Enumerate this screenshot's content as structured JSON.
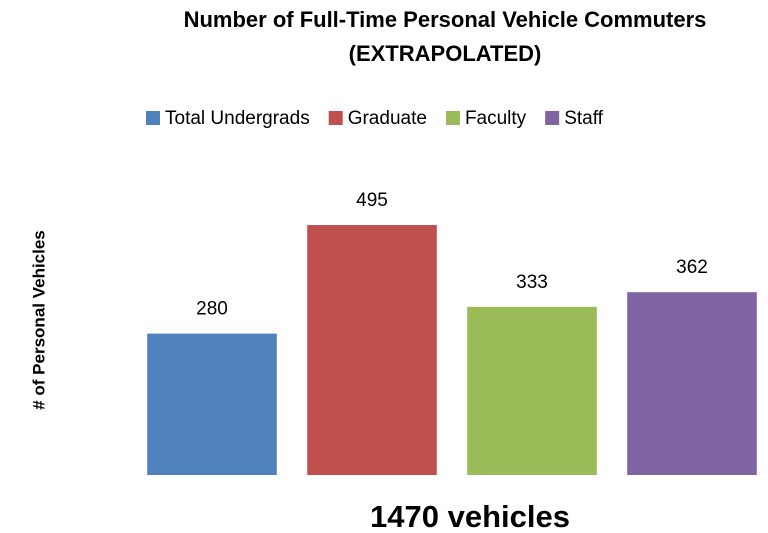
{
  "chart_data": {
    "type": "bar",
    "title": "Number of Full-Time Personal Vehicle Commuters",
    "subtitle": "(EXTRAPOLATED)",
    "y_label": "# of Personal Vehicles",
    "annotation": "1470 vehicles",
    "categories": [
      null
    ],
    "series": [
      {
        "name": "Total Undergrads",
        "color": "#4f81bd",
        "values": [
          280
        ]
      },
      {
        "name": "Graduate",
        "color": "#c0504d",
        "values": [
          495
        ]
      },
      {
        "name": "Faculty",
        "color": "#9bbb59",
        "values": [
          333
        ]
      },
      {
        "name": "Staff",
        "color": "#8064a2",
        "values": [
          362
        ]
      }
    ],
    "ylim": [
      0,
      540
    ],
    "legend": "top"
  }
}
